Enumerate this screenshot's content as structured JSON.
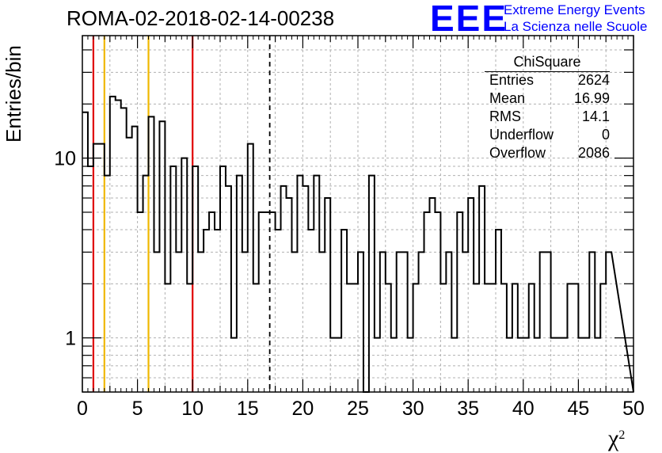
{
  "header": {
    "title": "ROMA-02-2018-02-14-00238",
    "logo": {
      "mark": "EEE",
      "line1": "Extreme Energy Events",
      "line2": "La Scienza nelle Scuole",
      "color": "#0000ff"
    }
  },
  "chart_data": {
    "type": "histogram",
    "title": "ROMA-02-2018-02-14-00238",
    "xlabel": "χ",
    "xlabel_sup": "2",
    "ylabel": "Entries/bin",
    "xlim": [
      0,
      50
    ],
    "ylim": [
      0.5,
      48
    ],
    "yscale": "log",
    "grid": true,
    "bin_width": 0.5,
    "x_ticks": [
      0,
      5,
      10,
      15,
      20,
      25,
      30,
      35,
      40,
      45,
      50
    ],
    "y_ticks": [
      1,
      10
    ],
    "counts": [
      18,
      9,
      12,
      12,
      8,
      22,
      21,
      19,
      13,
      15,
      5,
      8,
      17,
      3,
      16,
      2,
      9,
      3,
      10,
      2,
      9,
      3,
      4,
      5,
      4,
      9,
      7,
      1,
      8,
      3,
      12,
      2,
      5,
      5,
      5,
      4,
      7,
      6,
      3,
      8,
      7,
      4,
      8,
      3,
      6,
      1,
      1,
      4,
      2,
      2,
      3,
      0,
      8,
      1,
      3,
      2,
      1,
      3,
      3,
      1,
      2,
      3,
      5,
      6,
      5,
      2,
      3,
      1,
      5,
      3,
      6,
      2,
      7,
      2,
      2,
      4,
      2,
      1,
      2,
      1,
      1,
      2,
      1,
      3,
      3,
      1,
      1,
      1,
      2,
      2,
      1,
      1,
      3,
      1,
      2,
      3
    ],
    "vertical_lines": [
      {
        "x": 1,
        "color": "#e00000",
        "style": "solid"
      },
      {
        "x": 2,
        "color": "#f0b800",
        "style": "solid"
      },
      {
        "x": 6,
        "color": "#f0b800",
        "style": "solid"
      },
      {
        "x": 10,
        "color": "#e00000",
        "style": "solid"
      },
      {
        "x": 17,
        "color": "#000000",
        "style": "dashed"
      }
    ],
    "stats": {
      "title": "ChiSquare",
      "rows": [
        {
          "label": "Entries",
          "value": "2624"
        },
        {
          "label": "Mean",
          "value": "16.99"
        },
        {
          "label": "RMS",
          "value": "14.1"
        },
        {
          "label": "Underflow",
          "value": "0"
        },
        {
          "label": "Overflow",
          "value": "2086"
        }
      ]
    }
  }
}
